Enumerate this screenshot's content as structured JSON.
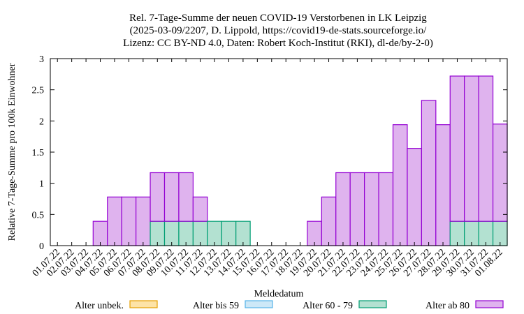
{
  "chart_data": {
    "type": "bar",
    "stacked": true,
    "title": [
      "Rel. 7-Tage-Summe der neuen COVID-19 Verstorbenen in LK Leipzig",
      "(2025-03-09/2207, D. Lippold, https://covid19-de-stats.sourceforge.io/",
      "Lizenz: CC BY-ND 4.0, Daten: Robert Koch-Institut (RKI), dl-de/by-2-0)"
    ],
    "xlabel": "Meldedatum",
    "ylabel": "Relative 7-Tage-Summe pro 100k Einwohner",
    "ylim": [
      0,
      3
    ],
    "yticks": [
      "0",
      "0.5",
      "1",
      "1.5",
      "2",
      "2.5",
      "3"
    ],
    "categories": [
      "01.07.22",
      "02.07.22",
      "03.07.22",
      "04.07.22",
      "05.07.22",
      "06.07.22",
      "07.07.22",
      "08.07.22",
      "09.07.22",
      "10.07.22",
      "11.07.22",
      "12.07.22",
      "13.07.22",
      "14.07.22",
      "15.07.22",
      "16.07.22",
      "17.07.22",
      "18.07.22",
      "19.07.22",
      "20.07.22",
      "21.07.22",
      "22.07.22",
      "23.07.22",
      "24.07.22",
      "25.07.22",
      "26.07.22",
      "27.07.22",
      "28.07.22",
      "29.07.22",
      "30.07.22",
      "31.07.22",
      "01.08.22"
    ],
    "legend_position": "bottom",
    "series": [
      {
        "name": "Alter unbek.",
        "fill": "#fde3a7",
        "stroke": "#e69f00",
        "values": [
          0,
          0,
          0,
          0,
          0,
          0,
          0,
          0,
          0,
          0,
          0,
          0,
          0,
          0,
          0,
          0,
          0,
          0,
          0,
          0,
          0,
          0,
          0,
          0,
          0,
          0,
          0,
          0,
          0,
          0,
          0,
          0
        ]
      },
      {
        "name": "Alter bis 59",
        "fill": "#cde8f7",
        "stroke": "#56b4e9",
        "values": [
          0,
          0,
          0,
          0,
          0,
          0,
          0,
          0,
          0,
          0,
          0,
          0,
          0,
          0,
          0,
          0,
          0,
          0,
          0,
          0,
          0,
          0,
          0,
          0,
          0,
          0,
          0,
          0,
          0,
          0,
          0,
          0
        ]
      },
      {
        "name": "Alter 60 - 79",
        "fill": "#b3e1d1",
        "stroke": "#009e73",
        "values": [
          0,
          0,
          0,
          0,
          0,
          0,
          0,
          0.39,
          0.39,
          0.39,
          0.39,
          0.39,
          0.39,
          0.39,
          0,
          0,
          0,
          0,
          0,
          0,
          0,
          0,
          0,
          0,
          0,
          0,
          0,
          0,
          0.39,
          0.39,
          0.39,
          0.39
        ]
      },
      {
        "name": "Alter ab 80",
        "fill": "#dfb3ee",
        "stroke": "#9400d3",
        "values": [
          0,
          0,
          0,
          0.39,
          0.78,
          0.78,
          0.78,
          0.78,
          0.78,
          0.78,
          0.39,
          0,
          0,
          0,
          0,
          0,
          0,
          0,
          0.39,
          0.78,
          1.17,
          1.17,
          1.17,
          1.17,
          1.94,
          1.56,
          2.33,
          1.94,
          2.33,
          2.33,
          2.33,
          1.56
        ]
      }
    ]
  }
}
